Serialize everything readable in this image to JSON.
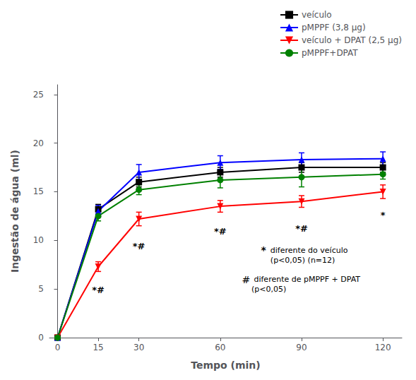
{
  "chart_data": {
    "type": "line",
    "x": [
      0,
      15,
      30,
      60,
      90,
      120
    ],
    "series": [
      {
        "name": "veículo",
        "color": "#000000",
        "marker": "square",
        "values": [
          0,
          13.2,
          16.0,
          17.0,
          17.5,
          17.5
        ],
        "errors": [
          0,
          0.5,
          0.5,
          0.5,
          0.5,
          0.5
        ]
      },
      {
        "name": "pMPPF (3,8 μg)",
        "color": "#0000FF",
        "marker": "triangle-up",
        "values": [
          0,
          13.0,
          17.0,
          18.0,
          18.3,
          18.4
        ],
        "errors": [
          0,
          0.6,
          0.8,
          0.7,
          0.7,
          0.7
        ]
      },
      {
        "name": "veículo + DPAT (2,5 μg)",
        "color": "#FF0000",
        "marker": "triangle-down",
        "values": [
          0,
          7.3,
          12.2,
          13.5,
          14.0,
          15.0
        ],
        "errors": [
          0,
          0.5,
          0.7,
          0.6,
          0.6,
          0.7
        ]
      },
      {
        "name": "pMPPF+DPAT",
        "color": "#008000",
        "marker": "circle",
        "values": [
          0,
          12.5,
          15.2,
          16.2,
          16.5,
          16.8
        ],
        "errors": [
          0,
          0.5,
          0.5,
          0.8,
          1.0,
          0.5
        ]
      }
    ],
    "xlabel": "Tempo (min)",
    "ylabel": "Ingestão de água (ml)",
    "xlim": [
      -3,
      127
    ],
    "ylim": [
      0,
      26
    ],
    "xticks": [
      0,
      15,
      30,
      60,
      90,
      120
    ],
    "yticks": [
      0,
      5,
      10,
      15,
      20,
      25
    ],
    "annotations": [
      {
        "x": 15,
        "y": 5.5,
        "text": "*#"
      },
      {
        "x": 30,
        "y": 10.0,
        "text": "*#"
      },
      {
        "x": 60,
        "y": 11.5,
        "text": "*#"
      },
      {
        "x": 90,
        "y": 11.8,
        "text": "*#"
      },
      {
        "x": 120,
        "y": 13.2,
        "text": "*"
      }
    ],
    "notes": [
      {
        "x": 75,
        "y": 9.5,
        "text": "*"
      },
      {
        "x": 78.5,
        "y": 9.5,
        "text": "diferente do veículo\n(p<0,05) (n=12)"
      },
      {
        "x": 68,
        "y": 6.5,
        "text": "#"
      },
      {
        "x": 71.5,
        "y": 6.5,
        "text": " diferente de pMPPF + DPAT\n(p<0,05)"
      }
    ],
    "legend": "upper right",
    "grid": false
  }
}
